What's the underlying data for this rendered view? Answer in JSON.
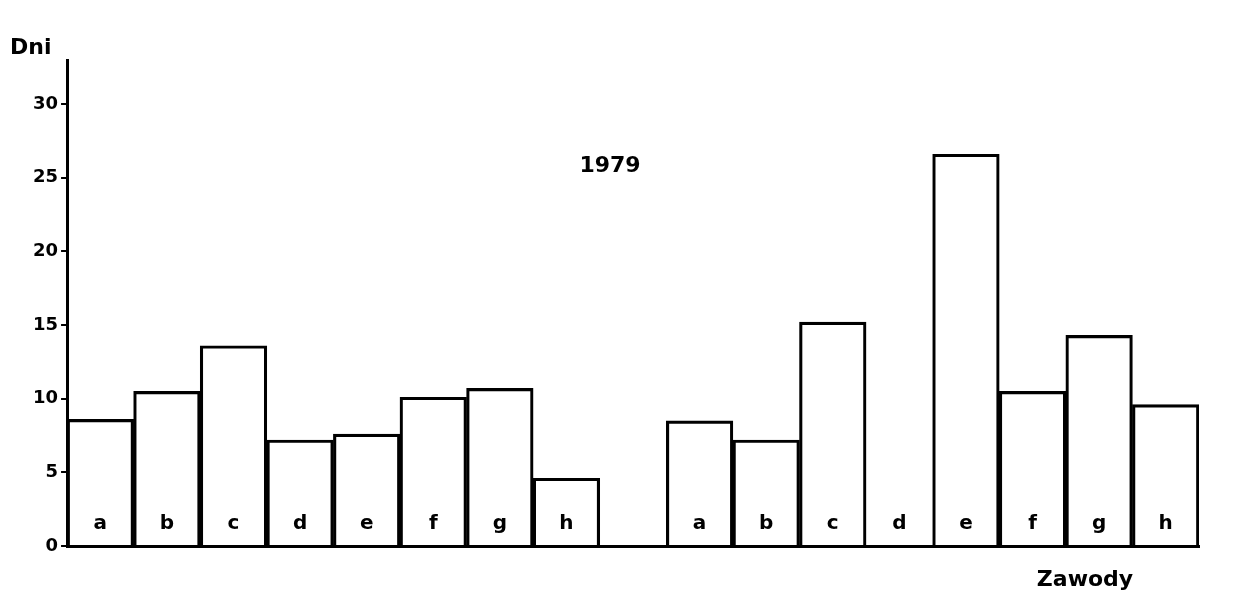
{
  "chart_data": {
    "type": "bar",
    "title": "1979",
    "xlabel": "Zawody",
    "ylabel": "Dni",
    "categories": [
      "a",
      "b",
      "c",
      "d",
      "e",
      "f",
      "g",
      "h",
      null,
      "a",
      "b",
      "c",
      "d",
      "e",
      "f",
      "g",
      "h"
    ],
    "values": [
      8.6,
      10.5,
      13.6,
      7.2,
      7.6,
      10.1,
      10.7,
      4.6,
      null,
      8.5,
      7.2,
      15.2,
      0,
      26.6,
      10.5,
      14.3,
      9.6
    ],
    "color": "#000000",
    "ylim": [
      0,
      33
    ],
    "yticks": [
      0,
      5,
      10,
      15,
      20,
      25,
      30
    ],
    "grid": false,
    "legend": false
  }
}
